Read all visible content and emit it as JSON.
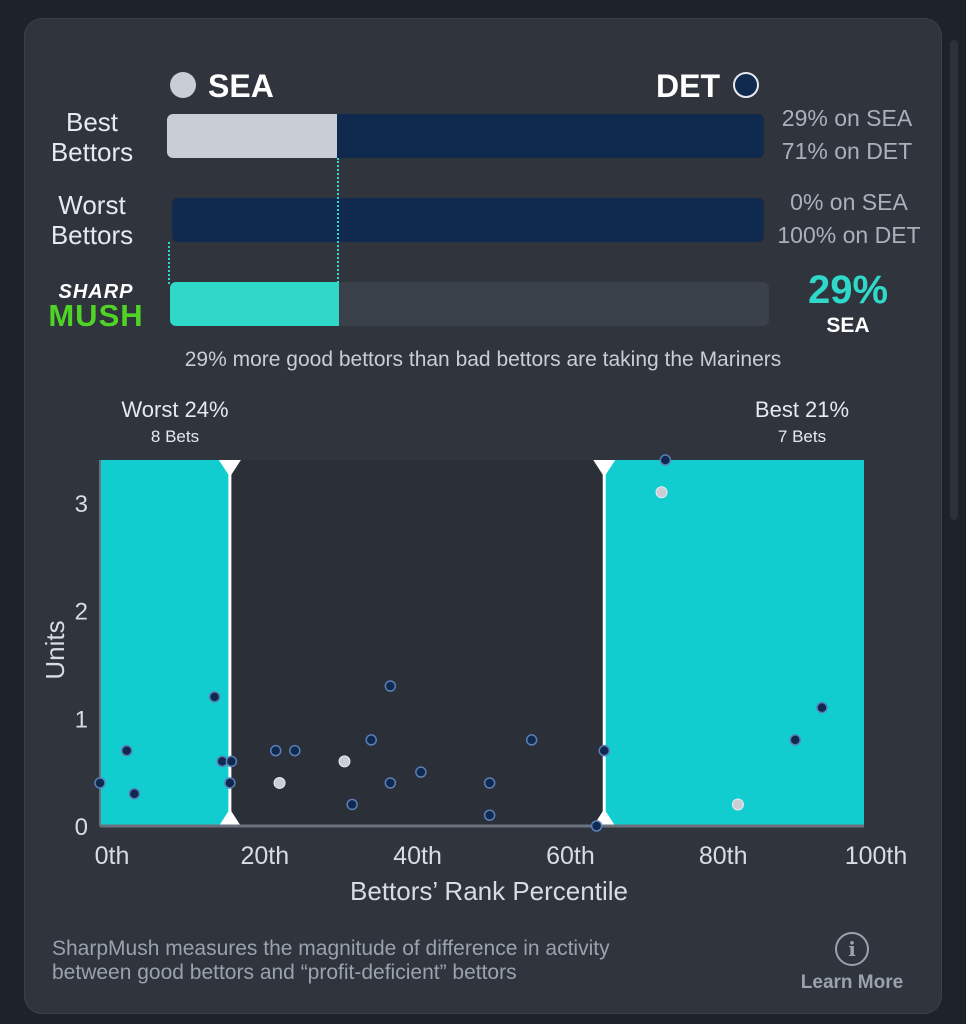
{
  "colors": {
    "sea": "#c9ced5",
    "det": "#10294f",
    "accent": "#2fd8c8",
    "band": "#11cdd0"
  },
  "header": {
    "team_left": "SEA",
    "team_right": "DET"
  },
  "rows": {
    "best": {
      "label_line1": "Best",
      "label_line2": "Bettors",
      "sea_pct": "29% on SEA",
      "det_pct": "71% on DET",
      "sea_fraction": 0.29
    },
    "worst": {
      "label_line1": "Worst",
      "label_line2": "Bettors",
      "sea_pct": "0% on SEA",
      "det_pct": "100% on DET",
      "sea_fraction": 0.0
    },
    "mush": {
      "logo_top": "SHARP",
      "logo_bottom": "MUSH",
      "value": "29%",
      "team": "SEA",
      "fraction": 0.29
    }
  },
  "caption": "29% more good bettors than bad bettors are taking the Mariners",
  "chart_data": {
    "type": "scatter",
    "xlabel": "Bettors’ Rank Percentile",
    "ylabel": "Units",
    "xlim": [
      0,
      100
    ],
    "ylim": [
      0,
      3.4
    ],
    "x_ticks": [
      "0th",
      "20th",
      "40th",
      "60th",
      "80th",
      "100th"
    ],
    "x_tick_values": [
      0,
      20,
      40,
      60,
      80,
      100
    ],
    "y_ticks": [
      "0",
      "1",
      "2",
      "3"
    ],
    "y_tick_values": [
      0,
      1,
      2,
      3
    ],
    "worst_band": {
      "label": "Worst 24%",
      "sublabel": "8 Bets",
      "from": 0,
      "to": 17
    },
    "best_band": {
      "label": "Best 21%",
      "sublabel": "7 Bets",
      "from": 66,
      "to": 100
    },
    "series": [
      {
        "team": "DET",
        "color": "#10294f",
        "points": [
          [
            0,
            0.4
          ],
          [
            3.5,
            0.7
          ],
          [
            4.5,
            0.3
          ],
          [
            15,
            1.2
          ],
          [
            16,
            0.6
          ],
          [
            17,
            0.4
          ],
          [
            17.2,
            0.6
          ],
          [
            23,
            0.7
          ],
          [
            25.5,
            0.7
          ],
          [
            33,
            0.2
          ],
          [
            35.5,
            0.8
          ],
          [
            38,
            1.3
          ],
          [
            38,
            0.4
          ],
          [
            42,
            0.5
          ],
          [
            51,
            0.4
          ],
          [
            51,
            0.1
          ],
          [
            56.5,
            0.8
          ],
          [
            65,
            0.0
          ],
          [
            66,
            0.7
          ],
          [
            74,
            3.4
          ],
          [
            91,
            0.8
          ],
          [
            94.5,
            1.1
          ]
        ]
      },
      {
        "team": "SEA",
        "color": "#c9ced5",
        "points": [
          [
            23.5,
            0.4
          ],
          [
            32,
            0.6
          ],
          [
            73.5,
            3.1
          ],
          [
            83.5,
            0.2
          ]
        ]
      }
    ]
  },
  "footer": {
    "line1": "SharpMush measures the magnitude of difference in activity",
    "line2": "between good bettors and “profit-deficient” bettors",
    "learn_more": "Learn More",
    "info_icon": "info-icon"
  }
}
